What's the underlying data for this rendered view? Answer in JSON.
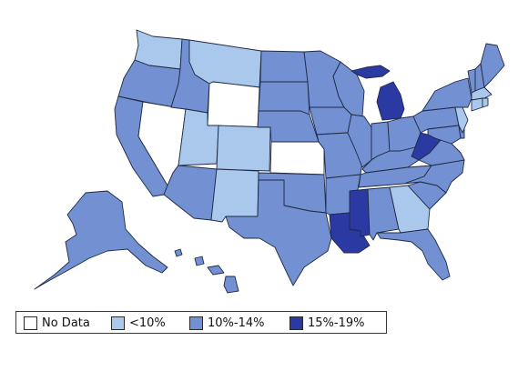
{
  "colors": {
    "no_data": "#ffffff",
    "under_10": "#a9c8ec",
    "ten_14": "#7290d2",
    "fifteen_19": "#2b3aa2",
    "border": "#1f2a44"
  },
  "legend": {
    "items": [
      {
        "label": "No Data",
        "color": "#ffffff"
      },
      {
        "label": "<10%",
        "color": "#a9c8ec"
      },
      {
        "label": "10%-14%",
        "color": "#7290d2"
      },
      {
        "label": "15%-19%",
        "color": "#2b3aa2"
      }
    ]
  },
  "states": {
    "WA": "under_10",
    "OR": "ten_14",
    "CA": "ten_14",
    "NV": "no_data",
    "ID": "ten_14",
    "MT": "under_10",
    "WY": "no_data",
    "UT": "under_10",
    "CO": "under_10",
    "AZ": "ten_14",
    "NM": "under_10",
    "ND": "ten_14",
    "SD": "ten_14",
    "NE": "ten_14",
    "KS": "no_data",
    "OK": "ten_14",
    "TX": "ten_14",
    "MN": "ten_14",
    "IA": "ten_14",
    "MO": "ten_14",
    "AR": "ten_14",
    "LA": "fifteen_19",
    "WI": "ten_14",
    "IL": "ten_14",
    "MI": "fifteen_19",
    "IN": "ten_14",
    "OH": "ten_14",
    "KY": "ten_14",
    "TN": "ten_14",
    "MS": "fifteen_19",
    "AL": "ten_14",
    "GA": "under_10",
    "FL": "ten_14",
    "SC": "ten_14",
    "NC": "ten_14",
    "VA": "ten_14",
    "WV": "fifteen_19",
    "PA": "ten_14",
    "NY": "ten_14",
    "VT": "ten_14",
    "NH": "ten_14",
    "ME": "ten_14",
    "MA": "under_10",
    "CT": "under_10",
    "RI": "under_10",
    "NJ": "under_10",
    "DE": "ten_14",
    "MD": "ten_14",
    "AK": "ten_14",
    "HI": "ten_14"
  }
}
